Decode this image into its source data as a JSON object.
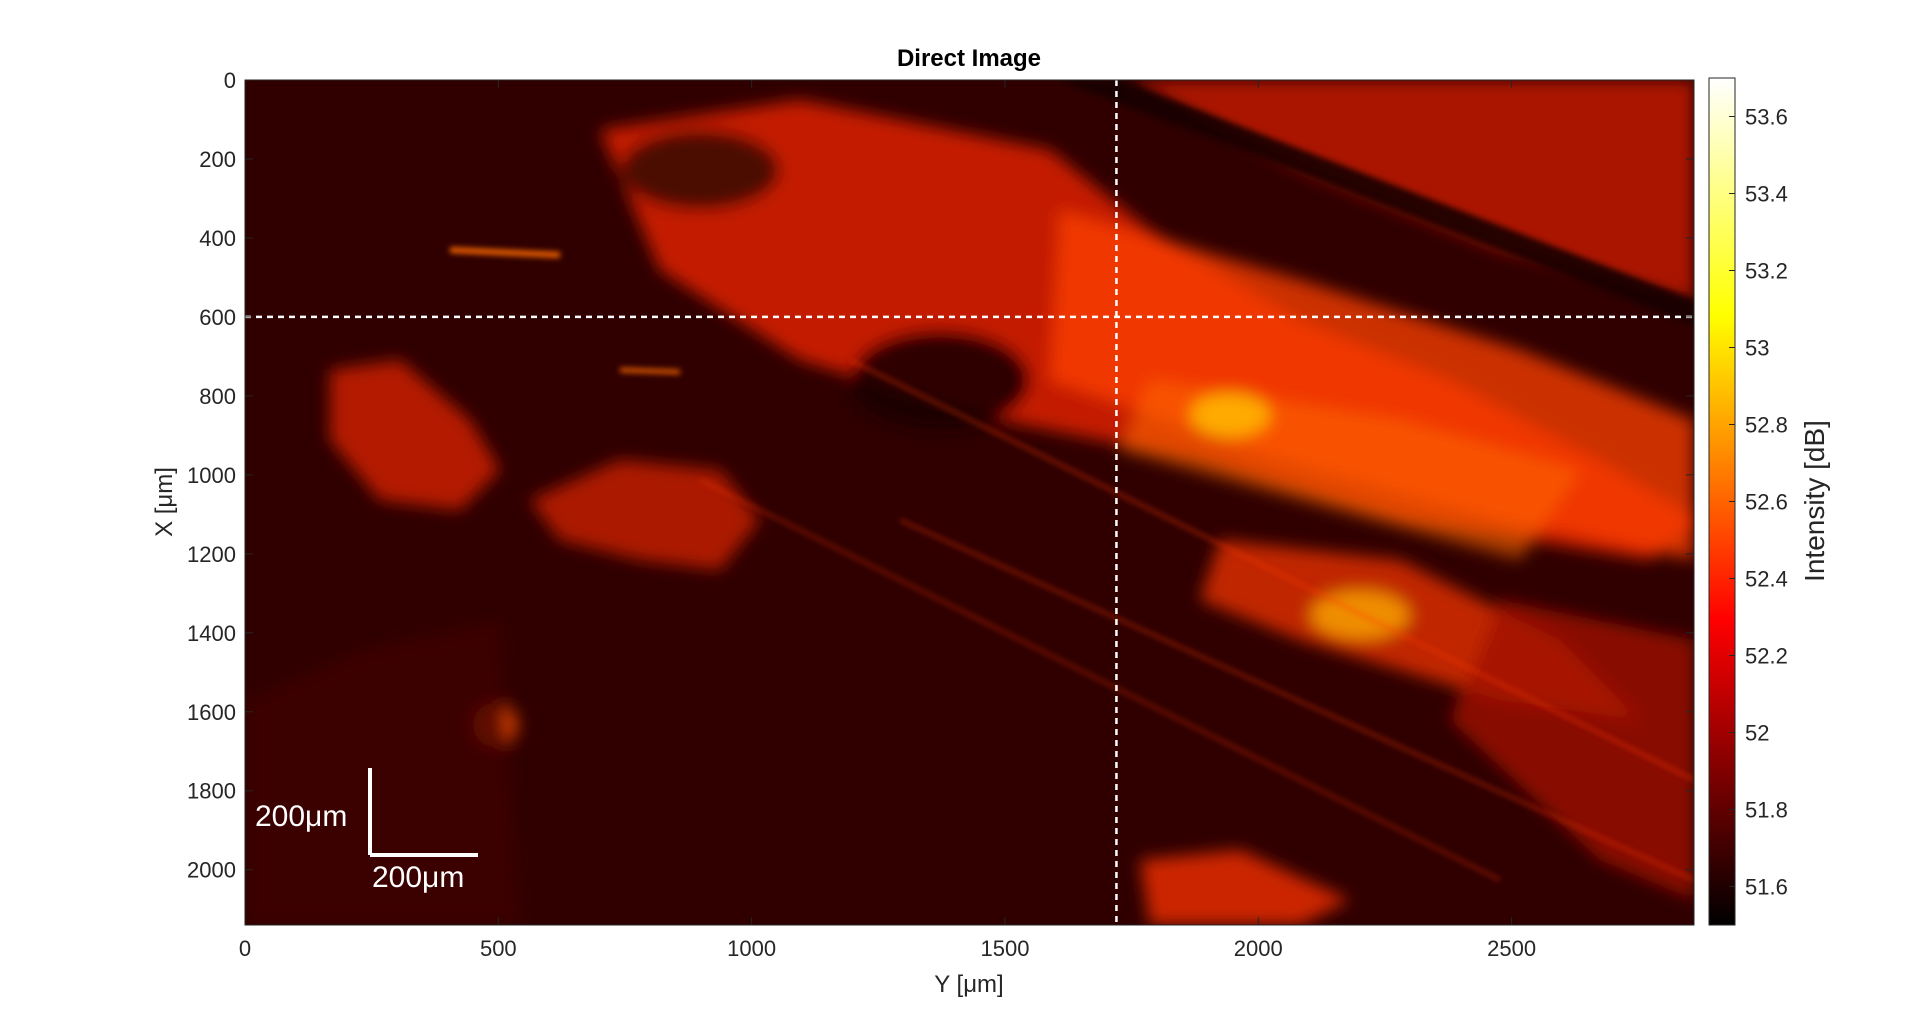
{
  "chart_data": {
    "type": "heatmap",
    "title": "Direct Image",
    "xlabel": "Y [μm]",
    "ylabel": "X [μm]",
    "xlim": [
      0,
      2860
    ],
    "ylim": [
      2140,
      0
    ],
    "x_ticks": [
      0,
      500,
      1000,
      1500,
      2000,
      2500
    ],
    "y_ticks": [
      0,
      200,
      400,
      600,
      800,
      1000,
      1200,
      1400,
      1600,
      1800,
      2000
    ],
    "colorbar": {
      "label": "Intensity [dB]",
      "range": [
        51.5,
        53.7
      ],
      "ticks": [
        51.6,
        51.8,
        52,
        52.2,
        52.4,
        52.6,
        52.8,
        53,
        53.2,
        53.4,
        53.6
      ],
      "colormap": "hot"
    },
    "crosshair": {
      "y_um": 1720,
      "x_um": 600
    },
    "scale_bar": {
      "vertical_label": "200μm",
      "horizontal_label": "200μm",
      "length_um": 200
    }
  },
  "colors": {
    "line": "#ffffff",
    "axis": "#262626"
  }
}
